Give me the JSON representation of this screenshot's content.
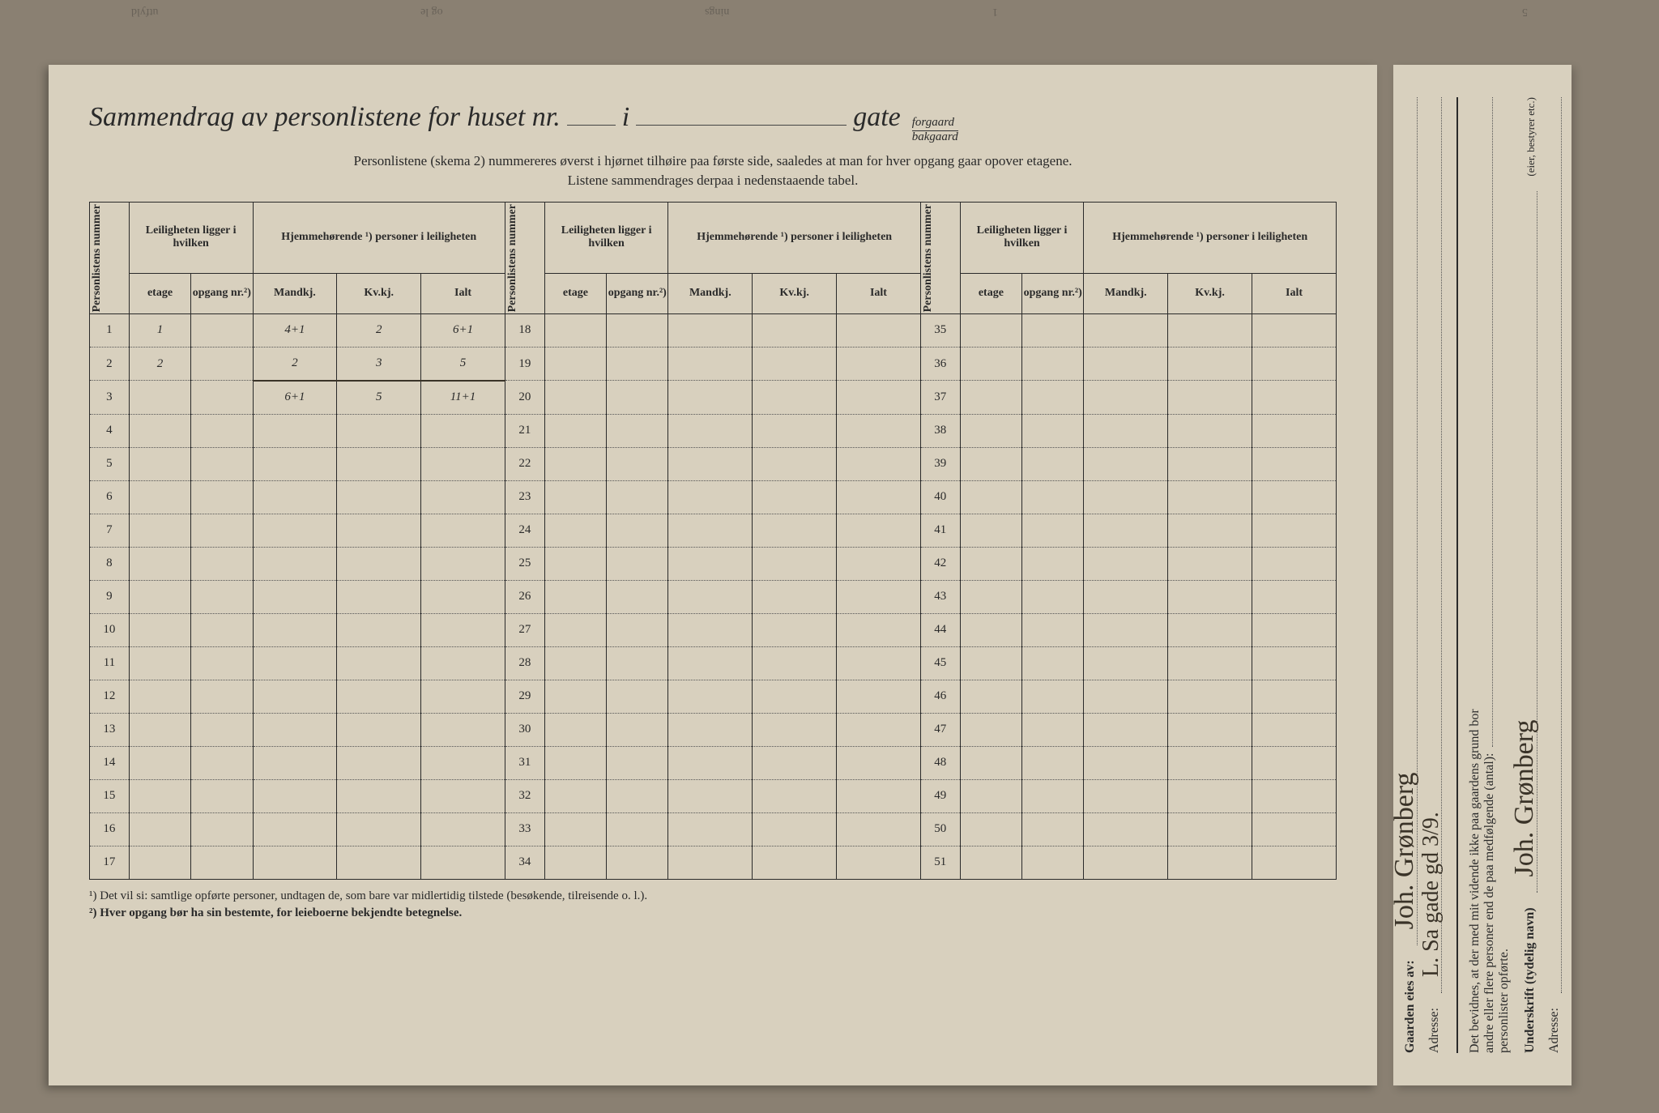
{
  "bleed": [
    "utfyld",
    "og le",
    "nings",
    "1",
    "5"
  ],
  "title": {
    "main": "Sammendrag av personlistene for huset nr.",
    "i": "i",
    "gate": "gate",
    "forgaard": "forgaard",
    "bakgaard": "bakgaard"
  },
  "subtitle_line1": "Personlistene (skema 2) nummereres øverst i hjørnet tilhøire paa første side, saaledes at man for hver opgang gaar opover etagene.",
  "subtitle_line2": "Listene sammendrages derpaa i nedenstaaende tabel.",
  "headers": {
    "personlistens": "Personlistens nummer",
    "leiligheten": "Leiligheten ligger i hvilken",
    "hjemmehorende": "Hjemmehørende ¹) personer i leiligheten",
    "etage": "etage",
    "opgang": "opgang nr.²)",
    "mandkj": "Mandkj.",
    "kvkj": "Kv.kj.",
    "ialt": "Ialt"
  },
  "col1_nums": [
    "1",
    "2",
    "3",
    "4",
    "5",
    "6",
    "7",
    "8",
    "9",
    "10",
    "11",
    "12",
    "13",
    "14",
    "15",
    "16",
    "17"
  ],
  "col2_nums": [
    "18",
    "19",
    "20",
    "21",
    "22",
    "23",
    "24",
    "25",
    "26",
    "27",
    "28",
    "29",
    "30",
    "31",
    "32",
    "33",
    "34"
  ],
  "col3_nums": [
    "35",
    "36",
    "37",
    "38",
    "39",
    "40",
    "41",
    "42",
    "43",
    "44",
    "45",
    "46",
    "47",
    "48",
    "49",
    "50",
    "51"
  ],
  "handwritten": {
    "row1": {
      "etage": "1",
      "mandkj": "4+1",
      "kvkj": "2",
      "ialt": "6+1"
    },
    "row2": {
      "etage": "2",
      "mandkj": "2",
      "kvkj": "3",
      "ialt": "5"
    },
    "row3": {
      "mandkj": "6+1",
      "kvkj": "5",
      "ialt": "11+1"
    }
  },
  "footnote1": "¹)  Det vil si: samtlige opførte personer, undtagen de, som bare var midlertidig tilstede (besøkende, tilreisende o. l.).",
  "footnote2": "²)  Hver opgang bør ha sin bestemte, for leieboerne bekjendte betegnelse.",
  "right": {
    "gaarden": "Gaarden eies av:",
    "owner_sig": "Joh. Grønberg",
    "adresse_label": "Adresse:",
    "adresse_val": "L. Sa gade gd 3/9.",
    "bevidnes1": "Det bevidnes, at der med mit vidende ikke paa gaardens grund bor",
    "bevidnes2": "andre eller flere personer end de paa medfølgende (antal):",
    "bevidnes3": "personlister opførte.",
    "underskrift": "Underskrift (tydelig navn)",
    "sig2": "Joh. Grønberg",
    "owner_note": "(eier, bestyrer etc.)",
    "adresse2": "Adresse:"
  },
  "colors": {
    "paper": "#d8d0be",
    "ink": "#2a2a2a",
    "hand": "#3a3328",
    "bg": "#8a8072"
  }
}
